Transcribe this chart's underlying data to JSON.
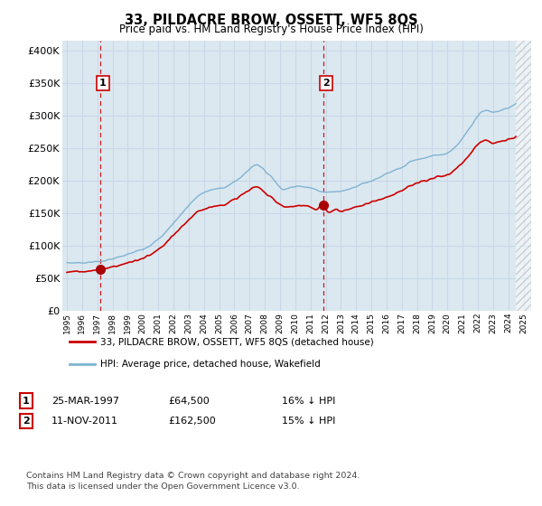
{
  "title": "33, PILDACRE BROW, OSSETT, WF5 8QS",
  "subtitle": "Price paid vs. HM Land Registry's House Price Index (HPI)",
  "ylabel_ticks": [
    "£0",
    "£50K",
    "£100K",
    "£150K",
    "£200K",
    "£250K",
    "£300K",
    "£350K",
    "£400K"
  ],
  "ytick_values": [
    0,
    50000,
    100000,
    150000,
    200000,
    250000,
    300000,
    350000,
    400000
  ],
  "ylim": [
    0,
    415000
  ],
  "xlim_start": 1994.7,
  "xlim_end": 2025.5,
  "sale1_x": 1997.22,
  "sale1_y": 64500,
  "sale2_x": 2011.87,
  "sale2_y": 162500,
  "vline1_x": 1997.22,
  "vline2_x": 2011.87,
  "data_end_x": 2024.5,
  "red_line_color": "#cc0000",
  "blue_line_color": "#7fb3d3",
  "dot_color": "#aa0000",
  "vline_color": "#cc0000",
  "grid_color": "#c8d8e8",
  "bg_color": "#dce8f0",
  "legend_entry1": "33, PILDACRE BROW, OSSETT, WF5 8QS (detached house)",
  "legend_entry2": "HPI: Average price, detached house, Wakefield",
  "table_row1": [
    "1",
    "25-MAR-1997",
    "£64,500",
    "16% ↓ HPI"
  ],
  "table_row2": [
    "2",
    "11-NOV-2011",
    "£162,500",
    "15% ↓ HPI"
  ],
  "footnote": "Contains HM Land Registry data © Crown copyright and database right 2024.\nThis data is licensed under the Open Government Licence v3.0.",
  "label_box_color": "#cc0000",
  "hpi_points": [
    [
      1995.0,
      74000
    ],
    [
      1996.0,
      74500
    ],
    [
      1997.0,
      76000
    ],
    [
      1998.0,
      80000
    ],
    [
      1999.0,
      87000
    ],
    [
      2000.0,
      96000
    ],
    [
      2001.0,
      110000
    ],
    [
      2002.0,
      135000
    ],
    [
      2003.0,
      162000
    ],
    [
      2004.0,
      182000
    ],
    [
      2005.0,
      188000
    ],
    [
      2006.0,
      198000
    ],
    [
      2007.0,
      218000
    ],
    [
      2007.5,
      225000
    ],
    [
      2008.0,
      215000
    ],
    [
      2008.5,
      205000
    ],
    [
      2009.0,
      190000
    ],
    [
      2009.5,
      188000
    ],
    [
      2010.0,
      191000
    ],
    [
      2010.5,
      192000
    ],
    [
      2011.0,
      189000
    ],
    [
      2011.5,
      185000
    ],
    [
      2012.0,
      183000
    ],
    [
      2012.5,
      183000
    ],
    [
      2013.0,
      184000
    ],
    [
      2013.5,
      187000
    ],
    [
      2014.0,
      192000
    ],
    [
      2014.5,
      196000
    ],
    [
      2015.0,
      200000
    ],
    [
      2015.5,
      205000
    ],
    [
      2016.0,
      210000
    ],
    [
      2016.5,
      215000
    ],
    [
      2017.0,
      220000
    ],
    [
      2017.5,
      228000
    ],
    [
      2018.0,
      232000
    ],
    [
      2018.5,
      235000
    ],
    [
      2019.0,
      238000
    ],
    [
      2019.5,
      240000
    ],
    [
      2020.0,
      243000
    ],
    [
      2020.5,
      252000
    ],
    [
      2021.0,
      265000
    ],
    [
      2021.5,
      282000
    ],
    [
      2022.0,
      300000
    ],
    [
      2022.5,
      308000
    ],
    [
      2023.0,
      305000
    ],
    [
      2023.5,
      308000
    ],
    [
      2024.0,
      312000
    ],
    [
      2024.5,
      318000
    ]
  ],
  "red_points": [
    [
      1995.0,
      60000
    ],
    [
      1996.0,
      61000
    ],
    [
      1997.0,
      63000
    ],
    [
      1997.22,
      64500
    ],
    [
      1998.0,
      68000
    ],
    [
      1999.0,
      74000
    ],
    [
      2000.0,
      81000
    ],
    [
      2001.0,
      94000
    ],
    [
      2002.0,
      116000
    ],
    [
      2003.0,
      140000
    ],
    [
      2004.0,
      157000
    ],
    [
      2005.0,
      162000
    ],
    [
      2006.0,
      171000
    ],
    [
      2007.0,
      186000
    ],
    [
      2007.5,
      190000
    ],
    [
      2008.0,
      182000
    ],
    [
      2008.5,
      174000
    ],
    [
      2009.0,
      163000
    ],
    [
      2009.5,
      160000
    ],
    [
      2010.0,
      161000
    ],
    [
      2010.5,
      162000
    ],
    [
      2011.0,
      159000
    ],
    [
      2011.5,
      157000
    ],
    [
      2011.87,
      162500
    ],
    [
      2012.0,
      156000
    ],
    [
      2012.5,
      155000
    ],
    [
      2013.0,
      154000
    ],
    [
      2013.5,
      156000
    ],
    [
      2014.0,
      160000
    ],
    [
      2014.5,
      163000
    ],
    [
      2015.0,
      167000
    ],
    [
      2015.5,
      171000
    ],
    [
      2016.0,
      175000
    ],
    [
      2016.5,
      180000
    ],
    [
      2017.0,
      185000
    ],
    [
      2017.5,
      191000
    ],
    [
      2018.0,
      196000
    ],
    [
      2018.5,
      200000
    ],
    [
      2019.0,
      203000
    ],
    [
      2019.5,
      206000
    ],
    [
      2020.0,
      209000
    ],
    [
      2020.5,
      217000
    ],
    [
      2021.0,
      228000
    ],
    [
      2021.5,
      242000
    ],
    [
      2022.0,
      256000
    ],
    [
      2022.5,
      262000
    ],
    [
      2023.0,
      258000
    ],
    [
      2023.5,
      260000
    ],
    [
      2024.0,
      263000
    ],
    [
      2024.5,
      268000
    ]
  ]
}
